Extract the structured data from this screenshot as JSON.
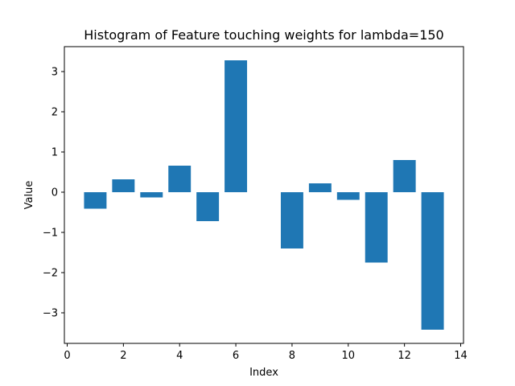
{
  "chart_data": {
    "type": "bar",
    "title": "Histogram of Feature touching weights for lambda=150",
    "xlabel": "Index",
    "ylabel": "Value",
    "x": [
      1,
      2,
      3,
      4,
      5,
      6,
      7,
      8,
      9,
      10,
      11,
      12,
      13
    ],
    "values": [
      -0.41,
      0.32,
      -0.13,
      0.66,
      -0.72,
      3.28,
      0.0,
      -1.4,
      0.22,
      -0.19,
      -1.75,
      0.8,
      -3.42
    ],
    "bar_width": 0.8,
    "xlim": [
      -0.1,
      14.1
    ],
    "ylim": [
      -3.76,
      3.62
    ],
    "xticks": [
      0,
      2,
      4,
      6,
      8,
      10,
      12,
      14
    ],
    "yticks": [
      -3,
      -2,
      -1,
      0,
      1,
      2,
      3
    ],
    "bar_color": "#1f77b4",
    "grid": false
  }
}
